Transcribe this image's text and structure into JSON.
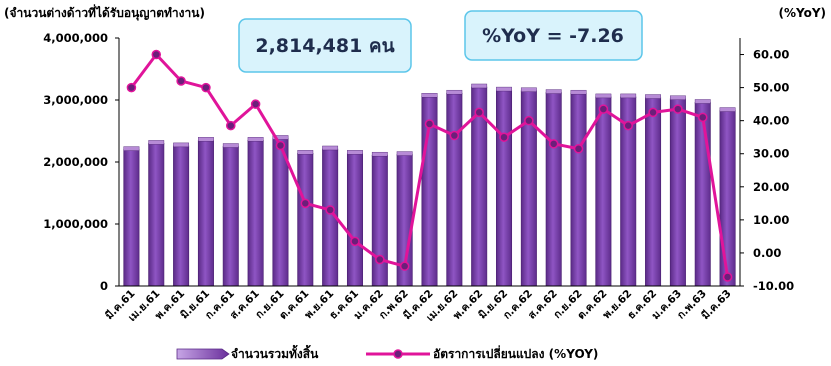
{
  "chart_data": {
    "type": "bar",
    "left_axis_title": "(จำนวนต่างด้าวที่ได้รับอนุญาตทำงาน)",
    "right_axis_title": "(%YoY)",
    "categories": [
      "มี.ค.61",
      "เม.ย.61",
      "พ.ค.61",
      "มิ.ย.61",
      "ก.ค.61",
      "ส.ค.61",
      "ก.ย.61",
      "ต.ค.61",
      "พ.ย.61",
      "ธ.ค.61",
      "ม.ค.62",
      "ก.พ.62",
      "มี.ค.62",
      "เม.ย.62",
      "พ.ค.62",
      "มิ.ย.62",
      "ก.ค.62",
      "ส.ค.62",
      "ก.ย.62",
      "ต.ค.62",
      "พ.ย.62",
      "ธ.ค.62",
      "ม.ค.63",
      "ก.พ.63",
      "มี.ค.63"
    ],
    "y_left": {
      "min": 0,
      "max": 4000000,
      "ticks": [
        "0",
        "1,000,000",
        "2,000,000",
        "3,000,000",
        "4,000,000"
      ],
      "tick_values": [
        0,
        1000000,
        2000000,
        3000000,
        4000000
      ]
    },
    "y_right": {
      "min": -10,
      "max": 65,
      "ticks": [
        "-10.00",
        "0.00",
        "10.00",
        "20.00",
        "30.00",
        "40.00",
        "50.00",
        "60.00"
      ],
      "tick_values": [
        -10,
        0,
        10,
        20,
        30,
        40,
        50,
        60
      ]
    },
    "series": [
      {
        "name": "จำนวนรวมทั้งสิ้น",
        "type": "bar",
        "axis": "left",
        "color": "#7b3fb0",
        "values": [
          2200000,
          2300000,
          2260000,
          2350000,
          2250000,
          2350000,
          2380000,
          2140000,
          2210000,
          2140000,
          2110000,
          2120000,
          3060000,
          3110000,
          3210000,
          3160000,
          3150000,
          3120000,
          3110000,
          3050000,
          3050000,
          3040000,
          3020000,
          2960000,
          2830000
        ]
      },
      {
        "name": "อัตราการเปลี่ยนแปลง (%YOY)",
        "type": "line",
        "axis": "right",
        "color": "#e0149a",
        "values": [
          50,
          60,
          52,
          50,
          38.5,
          45,
          32.5,
          15,
          13,
          3.5,
          -2,
          -4,
          39,
          35.5,
          42.5,
          35,
          40,
          33,
          31.5,
          43.5,
          38.5,
          42.5,
          43.5,
          41,
          -7.26
        ]
      }
    ],
    "grid": false,
    "legend_position": "bottom"
  },
  "callouts": {
    "total": "2,814,481 คน",
    "yoy": "%YoY = -7.26"
  },
  "colors": {
    "bar_fill": "#7b3fb0",
    "bar_top": "#b78bd6",
    "line": "#e0149a",
    "marker_fill": "#6b1f7a",
    "callout_fill": "#d9f3fc",
    "callout_border": "#5cc6ea"
  }
}
